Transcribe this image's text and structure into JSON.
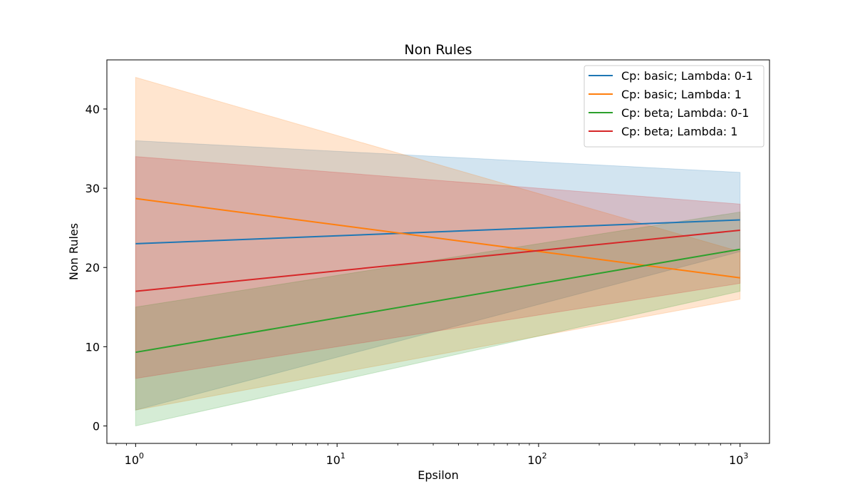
{
  "chart_data": {
    "type": "line",
    "title": "Non Rules",
    "xlabel": "Epsilon",
    "ylabel": "Non Rules",
    "xscale": "log",
    "xlim": [
      0.72,
      1400
    ],
    "ylim": [
      -2.2,
      46.2
    ],
    "grid": false,
    "legend_position": "top-right",
    "x": [
      1,
      1000
    ],
    "xticks": [
      {
        "value": 1,
        "base": "10",
        "exp": "0"
      },
      {
        "value": 10,
        "base": "10",
        "exp": "1"
      },
      {
        "value": 100,
        "base": "10",
        "exp": "2"
      },
      {
        "value": 1000,
        "base": "10",
        "exp": "3"
      }
    ],
    "yticks": [
      {
        "value": 0,
        "label": "0"
      },
      {
        "value": 10,
        "label": "10"
      },
      {
        "value": 20,
        "label": "20"
      },
      {
        "value": 30,
        "label": "30"
      },
      {
        "value": 40,
        "label": "40"
      }
    ],
    "series": [
      {
        "name": "Cp: basic; Lambda: 0-1",
        "color": "#1f77b4",
        "values": [
          23,
          26
        ],
        "lower": [
          2,
          22
        ],
        "upper": [
          36,
          32
        ]
      },
      {
        "name": "Cp: basic; Lambda: 1",
        "color": "#ff7f0e",
        "values": [
          28.7,
          18.7
        ],
        "lower": [
          2,
          16
        ],
        "upper": [
          44,
          22
        ]
      },
      {
        "name": "Cp: beta; Lambda: 0-1",
        "color": "#2ca02c",
        "values": [
          9.3,
          22.3
        ],
        "lower": [
          0,
          17
        ],
        "upper": [
          15,
          27
        ]
      },
      {
        "name": "Cp: beta; Lambda: 1",
        "color": "#d62728",
        "values": [
          17,
          24.7
        ],
        "lower": [
          6,
          18
        ],
        "upper": [
          34,
          28
        ]
      }
    ]
  }
}
